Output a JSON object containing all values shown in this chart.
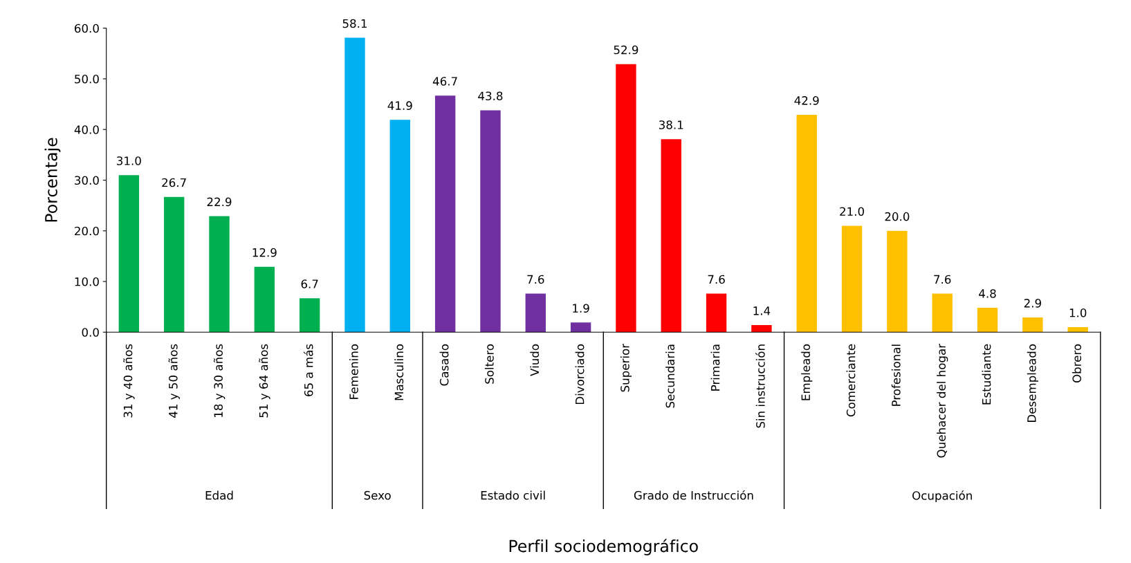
{
  "chart_data": {
    "type": "bar",
    "xlabel": "Perfil sociodemográfico",
    "ylabel": "Porcentaje",
    "categories": [
      "31 y 40 años",
      "41 y 50 años",
      "18 y 30 años",
      "51 y 64 años",
      "65 a más",
      "Femenino",
      "Masculino",
      "Casado",
      "Soltero",
      "Viudo",
      "Divorciado",
      "Superior",
      "Secundaria",
      "Primaria",
      "Sin instrucción",
      "Empleado",
      "Comerciante",
      "Profesional",
      "Quehacer del hogar",
      "Estudiante",
      "Desempleado",
      "Obrero"
    ],
    "values": [
      31.0,
      26.7,
      22.9,
      12.9,
      6.7,
      58.1,
      41.9,
      46.7,
      43.8,
      7.6,
      1.9,
      52.9,
      38.1,
      7.6,
      1.4,
      42.9,
      21.0,
      20.0,
      7.6,
      4.8,
      2.9,
      1.0
    ],
    "colors": [
      "#00b050",
      "#00b050",
      "#00b050",
      "#00b050",
      "#00b050",
      "#00b0f0",
      "#00b0f0",
      "#7030a0",
      "#7030a0",
      "#7030a0",
      "#7030a0",
      "#ff0000",
      "#ff0000",
      "#ff0000",
      "#ff0000",
      "#ffc000",
      "#ffc000",
      "#ffc000",
      "#ffc000",
      "#ffc000",
      "#ffc000",
      "#ffc000"
    ],
    "annotations": [
      "Edad",
      "Sexo",
      "Estado civil",
      "Grado de Instrucción",
      "Ocupación"
    ],
    "value_labels": [
      "31.0",
      "26.7",
      "22.9",
      "12.9",
      "6.7",
      "58.1",
      "41.9",
      "46.7",
      "43.8",
      "7.6",
      "1.9",
      "52.9",
      "38.1",
      "7.6",
      "1.4",
      "42.9",
      "21.0",
      "20.0",
      "7.6",
      "4.8",
      "2.9",
      "1.0"
    ],
    "grid": false,
    "legend": false,
    "ylim": [
      0,
      60
    ],
    "yticks": [
      {
        "value": 0,
        "label": "0.0"
      },
      {
        "value": 10,
        "label": "10.0"
      },
      {
        "value": 20,
        "label": "20.0"
      },
      {
        "value": 30,
        "label": "30.0"
      },
      {
        "value": 40,
        "label": "40.0"
      },
      {
        "value": 50,
        "label": "50.0"
      },
      {
        "value": 60,
        "label": "60.0"
      }
    ]
  }
}
